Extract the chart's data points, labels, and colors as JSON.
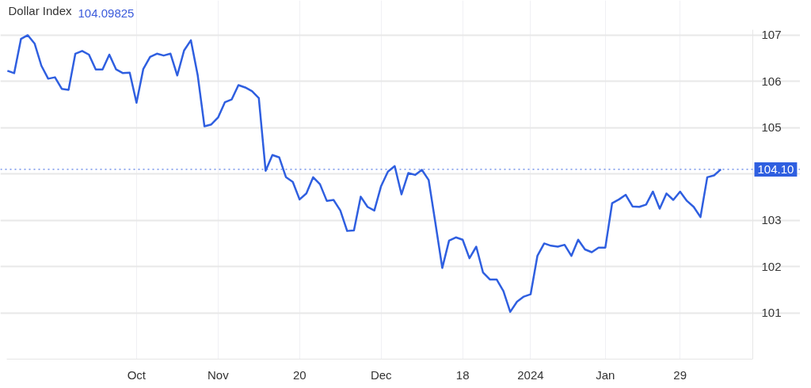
{
  "chart_data": {
    "type": "line",
    "title": "Dollar Index",
    "subtitle": "104.09825",
    "categories": [
      null,
      null,
      null,
      null,
      null,
      null,
      null,
      null,
      null,
      null,
      null,
      null,
      null,
      null,
      null,
      null,
      null,
      null,
      null,
      "Oct",
      null,
      null,
      null,
      null,
      null,
      null,
      null,
      null,
      null,
      null,
      null,
      "Nov",
      null,
      null,
      null,
      null,
      null,
      null,
      null,
      null,
      null,
      null,
      null,
      "20",
      null,
      null,
      null,
      null,
      null,
      null,
      null,
      null,
      null,
      null,
      null,
      "Dec",
      null,
      null,
      null,
      null,
      null,
      null,
      null,
      null,
      null,
      null,
      null,
      "18",
      null,
      null,
      null,
      null,
      null,
      null,
      null,
      null,
      null,
      "2024",
      null,
      null,
      null,
      null,
      null,
      null,
      null,
      null,
      null,
      null,
      "Jan",
      null,
      null,
      null,
      null,
      null,
      null,
      null,
      null,
      null,
      null,
      "29",
      null,
      null,
      null,
      null,
      null,
      null
    ],
    "series": [
      {
        "color": "#2f5fe0",
        "values": [
          106.23,
          106.18,
          106.92,
          107.0,
          106.82,
          106.34,
          106.06,
          106.09,
          105.84,
          105.82,
          106.6,
          106.66,
          106.58,
          106.26,
          106.26,
          106.58,
          106.26,
          106.18,
          106.19,
          105.54,
          106.27,
          106.53,
          106.6,
          106.56,
          106.6,
          106.13,
          106.67,
          106.89,
          106.14,
          105.03,
          105.07,
          105.22,
          105.55,
          105.61,
          105.92,
          105.87,
          105.79,
          105.64,
          104.07,
          104.41,
          104.36,
          103.93,
          103.83,
          103.45,
          103.58,
          103.93,
          103.78,
          103.42,
          103.44,
          103.21,
          102.77,
          102.78,
          103.51,
          103.29,
          103.21,
          103.74,
          104.05,
          104.17,
          103.56,
          104.02,
          103.98,
          104.09,
          103.87,
          102.93,
          101.97,
          102.56,
          102.63,
          102.58,
          102.18,
          102.43,
          101.87,
          101.72,
          101.72,
          101.47,
          101.02,
          101.24,
          101.35,
          101.4,
          102.23,
          102.5,
          102.45,
          102.43,
          102.47,
          102.23,
          102.58,
          102.37,
          102.31,
          102.41,
          102.41,
          103.37,
          103.45,
          103.55,
          103.3,
          103.29,
          103.34,
          103.62,
          103.25,
          103.58,
          103.44,
          103.62,
          103.42,
          103.29,
          103.07,
          103.93,
          103.97,
          104.1
        ]
      }
    ],
    "ylim": [
      100,
      107.12
    ],
    "yticks": [
      101,
      102,
      103,
      {
        "value": 104,
        "label": null
      },
      105,
      106,
      107
    ],
    "ref_lines": [
      {
        "axis": "y",
        "value": 104.1,
        "label": "104.10",
        "color": "#2f5fe0",
        "line_style": "dotted"
      }
    ],
    "grid": true,
    "line_style": "solid",
    "marker": "none"
  }
}
